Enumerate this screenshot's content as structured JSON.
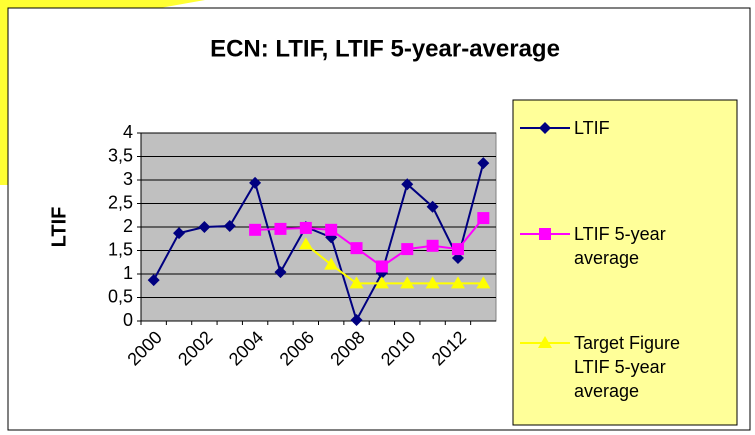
{
  "chart_data": {
    "type": "line",
    "title": "ECN: LTIF,  LTIF 5-year-average",
    "y_label": "LTIF",
    "categories": [
      "2000",
      null,
      "2002",
      null,
      "2004",
      null,
      "2006",
      null,
      "2008",
      null,
      "2010",
      null,
      "2012",
      null
    ],
    "series": [
      {
        "name": "LTIF",
        "color": "#000080",
        "marker": "diamond",
        "values": [
          0.87,
          1.87,
          2.0,
          2.02,
          2.94,
          1.04,
          2.0,
          1.78,
          0.02,
          1.02,
          2.91,
          2.43,
          1.34,
          3.36
        ]
      },
      {
        "name": "LTIF 5-year average",
        "color": "#ff00ff",
        "marker": "square",
        "values": [
          null,
          null,
          null,
          null,
          1.94,
          1.96,
          1.98,
          1.94,
          1.55,
          1.16,
          1.53,
          1.6,
          1.53,
          2.19
        ]
      },
      {
        "name": "Target Figure LTIF 5-year average",
        "color": "#ffff00",
        "marker": "triangle",
        "values": [
          null,
          null,
          null,
          null,
          null,
          null,
          1.63,
          1.2,
          0.8,
          0.8,
          0.8,
          0.8,
          0.8,
          0.8
        ]
      }
    ],
    "ylim": [
      0,
      4
    ],
    "yticks": [
      0,
      {
        "value": 0.5,
        "label": "0,5"
      },
      1,
      {
        "value": 1.5,
        "label": "1,5"
      },
      2,
      {
        "value": 2.5,
        "label": "2,5"
      },
      3,
      {
        "value": 3.5,
        "label": "3,5"
      },
      4
    ],
    "grid": true,
    "plot_background": "#c0c0c0",
    "legend_position": "right"
  }
}
